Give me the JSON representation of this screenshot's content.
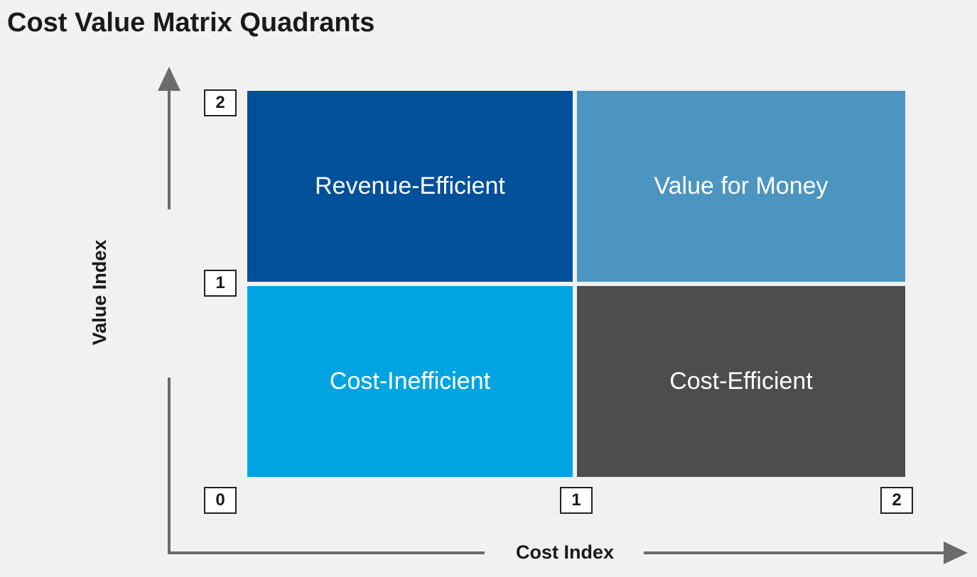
{
  "title": "Cost Value Matrix Quadrants",
  "quadrants": {
    "top_left": {
      "label": "Revenue-Efficient",
      "color": "#02509a"
    },
    "top_right": {
      "label": "Value for Money",
      "color": "#4d95c1"
    },
    "bottom_left": {
      "label": "Cost-Inefficient",
      "color": "#00a4e0"
    },
    "bottom_right": {
      "label": "Cost-Efficient",
      "color": "#4d4d4d"
    }
  },
  "axes": {
    "x_label": "Cost Index",
    "y_label": "Value Index",
    "x_ticks": [
      "0",
      "1",
      "2"
    ],
    "y_ticks": [
      "1",
      "2"
    ],
    "axis_color": "#6b6b6b"
  }
}
